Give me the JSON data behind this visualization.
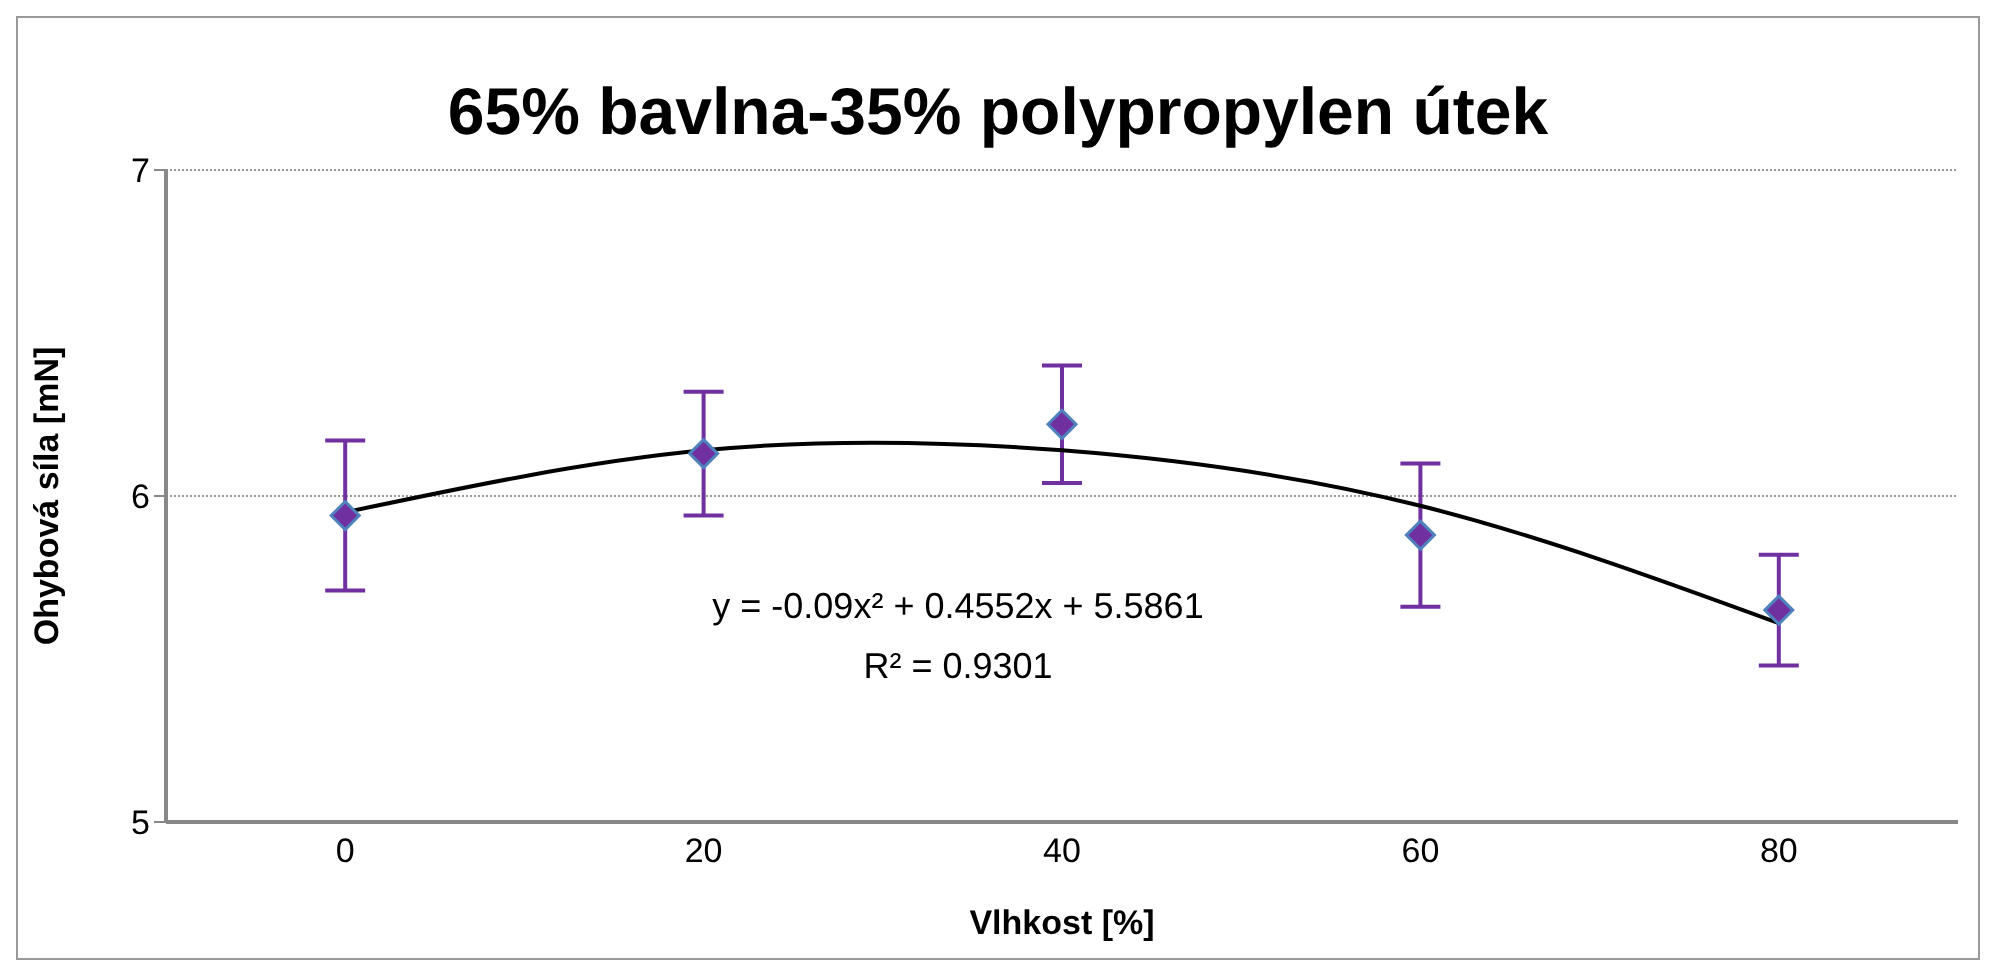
{
  "chart_data": {
    "type": "scatter",
    "title": "65% bavlna-35% polypropylen útek",
    "xlabel": "Vlhkost [%]",
    "ylabel": "Ohybová síla [mN]",
    "categories": [
      "0",
      "20",
      "40",
      "60",
      "80"
    ],
    "series": [
      {
        "color": "#7030a0",
        "values": [
          5.94,
          6.13,
          6.22,
          5.88,
          5.65
        ],
        "errors": [
          0.23,
          0.19,
          0.18,
          0.22,
          0.17
        ]
      },
      {
        "type": "line",
        "color": "#000000",
        "values": [
          5.95,
          6.14,
          6.14,
          5.97,
          5.61
        ],
        "marker": "none"
      }
    ],
    "ylim": [
      5,
      7
    ],
    "yticks": [
      5,
      6,
      7
    ],
    "grid": "y",
    "marker": "diamond",
    "annotations": [
      "y = -0.09x² + 0.4552x + 5.5861",
      "R² = 0.9301"
    ]
  }
}
